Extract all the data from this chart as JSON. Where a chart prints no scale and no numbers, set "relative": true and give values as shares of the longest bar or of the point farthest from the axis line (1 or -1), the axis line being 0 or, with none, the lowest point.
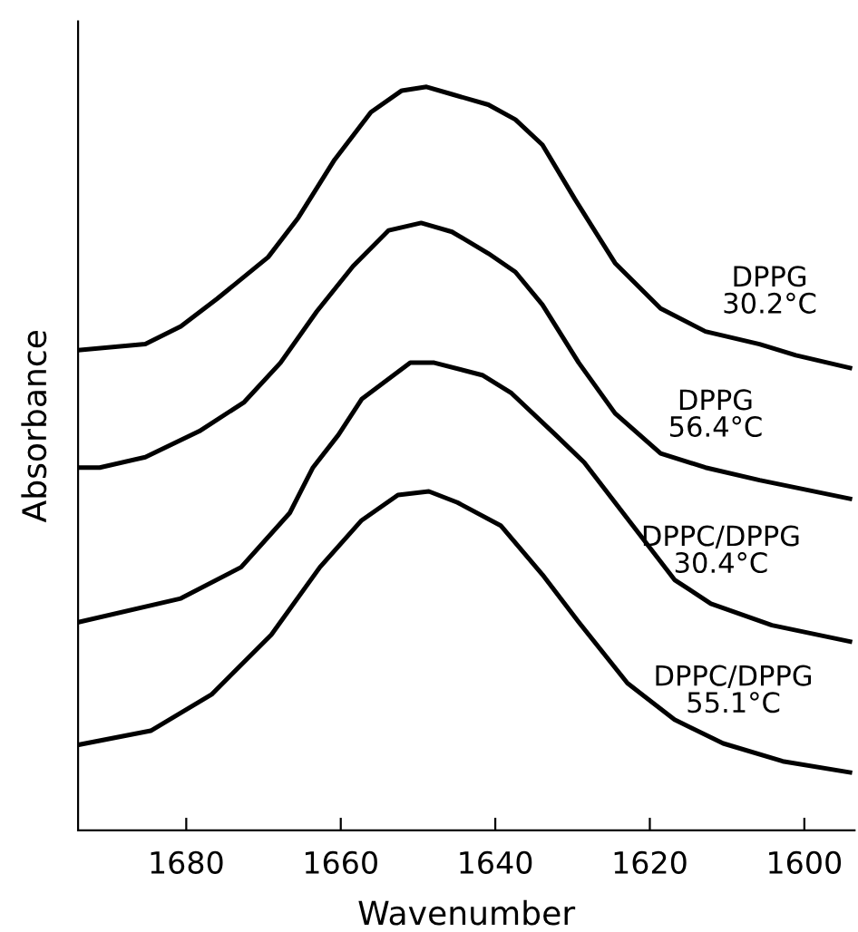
{
  "chart_data": {
    "type": "line",
    "xlabel": "Wavenumber",
    "ylabel": "Absorbance",
    "relative": true,
    "xlim": [
      1694,
      1593.5
    ],
    "xticks": [
      1680,
      1660,
      1640,
      1620,
      1600
    ],
    "grid": false,
    "legend": false,
    "marker": "none",
    "line_style": "solid",
    "series": [
      {
        "name": "DPPG\n30.2°C",
        "color": "#000000",
        "x": [
          1694,
          1685.3,
          1680.7,
          1676.0,
          1669.4,
          1665.5,
          1660.8,
          1656.1,
          1652.1,
          1648.9,
          1645.6,
          1640.9,
          1637.4,
          1633.9,
          1629.7,
          1624.5,
          1618.6,
          1612.8,
          1605.8,
          1601.1,
          1594.1
        ],
        "values": [
          0.646,
          0.654,
          0.678,
          0.715,
          0.771,
          0.824,
          0.902,
          0.966,
          0.995,
          1.0,
          0.99,
          0.976,
          0.956,
          0.922,
          0.849,
          0.763,
          0.702,
          0.671,
          0.654,
          0.639,
          0.622
        ]
      },
      {
        "name": "DPPG\n56.4°C",
        "color": "#000000",
        "x": [
          1694,
          1691.2,
          1685.3,
          1678.3,
          1672.5,
          1667.8,
          1663.1,
          1658.4,
          1653.8,
          1649.6,
          1645.6,
          1640.9,
          1637.4,
          1633.9,
          1629.2,
          1624.5,
          1618.6,
          1612.8,
          1605.8,
          1594.1
        ],
        "values": [
          0.488,
          0.488,
          0.502,
          0.537,
          0.576,
          0.629,
          0.698,
          0.759,
          0.807,
          0.817,
          0.805,
          0.776,
          0.751,
          0.707,
          0.629,
          0.561,
          0.507,
          0.488,
          0.471,
          0.446
        ]
      },
      {
        "name": "DPPC/DPPG\n30.4°C",
        "color": "#000000",
        "x": [
          1694,
          1680.7,
          1672.9,
          1666.6,
          1663.6,
          1660.3,
          1657.3,
          1651.0,
          1647.9,
          1641.6,
          1637.9,
          1632.2,
          1628.5,
          1622.2,
          1616.8,
          1612.1,
          1604.2,
          1594.1
        ],
        "values": [
          0.28,
          0.312,
          0.354,
          0.427,
          0.488,
          0.532,
          0.58,
          0.629,
          0.629,
          0.612,
          0.588,
          0.532,
          0.495,
          0.41,
          0.337,
          0.305,
          0.276,
          0.254
        ]
      },
      {
        "name": "DPPC/DPPG\n55.1°C",
        "color": "#000000",
        "x": [
          1694,
          1684.6,
          1676.7,
          1669.0,
          1662.7,
          1657.3,
          1652.6,
          1648.6,
          1644.9,
          1639.3,
          1633.9,
          1629.2,
          1622.9,
          1616.8,
          1610.5,
          1602.8,
          1594.1
        ],
        "values": [
          0.115,
          0.134,
          0.183,
          0.263,
          0.354,
          0.417,
          0.451,
          0.456,
          0.441,
          0.41,
          0.344,
          0.28,
          0.198,
          0.149,
          0.117,
          0.093,
          0.078
        ]
      }
    ]
  }
}
